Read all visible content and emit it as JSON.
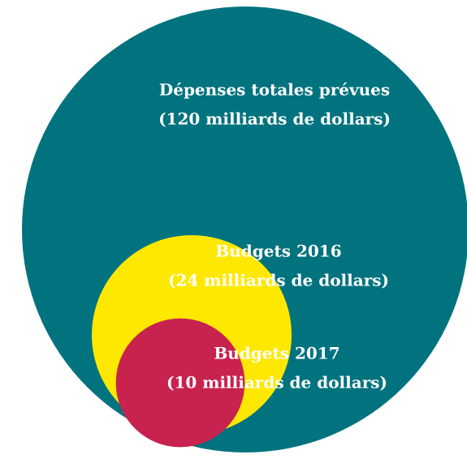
{
  "chart_data": {
    "type": "nested_circles",
    "categories": [
      "Dépenses totales prévues",
      "Budgets 2016",
      "Budgets 2017"
    ],
    "values": [
      120,
      24,
      10
    ],
    "value_labels": [
      "(120 milliards de dollars)",
      "(24 milliards de dollars)",
      "(10 milliards de dollars)"
    ],
    "colors": [
      "#00737f",
      "#ffe800",
      "#c8224e"
    ]
  }
}
